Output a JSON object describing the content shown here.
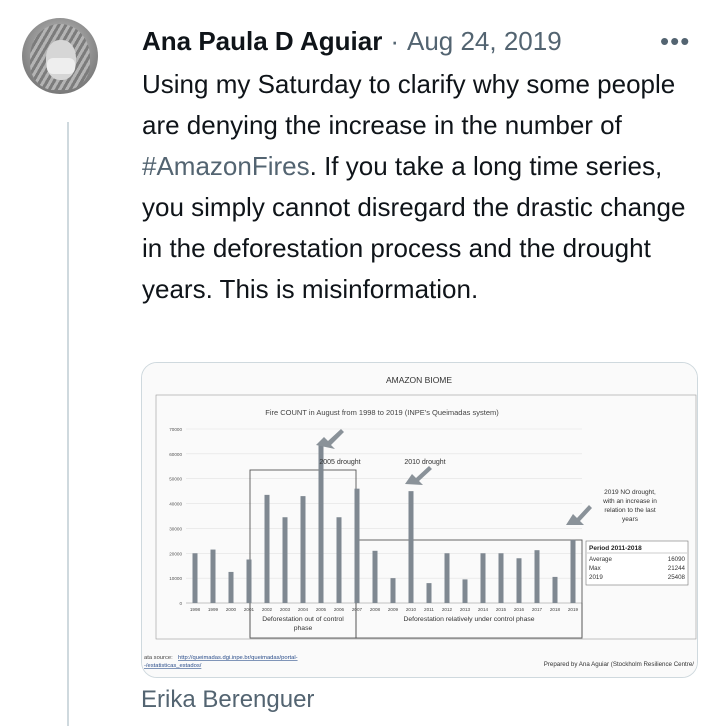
{
  "tweet": {
    "author_name": "Ana Paula D Aguiar",
    "separator": "·",
    "date": "Aug 24, 2019",
    "more_icon": "more-horizontal-icon",
    "text_before": "Using my Saturday to clarify why some people are denying the increase in the number of ",
    "hashtag": "#AmazonFires",
    "text_after": ". If you take a long time series, you simply cannot disregard the drastic change in the deforestation process and the drought years. This is misinformation."
  },
  "media": {
    "header": "AMAZON BIOME",
    "source_label": "ata source:",
    "source_url_1": "http://queimadas.dgi.inpe.br/queimadas/portal-",
    "source_url_2": "-/estatisticas_estados/",
    "prepared_by": "Prepared by Ana Aguiar (Stockholm Resilience Centre/",
    "phase1_label_1": "Deforestation out of control",
    "phase1_label_2": "phase",
    "phase2_label": "Deforestation relatively under control phase",
    "annotations": {
      "drought2005": "2005 drought",
      "drought2010": "2010 drought",
      "no_drought_lines": [
        "2019 NO drought,",
        "with an increase in",
        "relation to the last",
        "years"
      ]
    },
    "stats_table": {
      "title": "Period 2011-2018",
      "rows": [
        {
          "label": "Average",
          "value": "16090"
        },
        {
          "label": "Max",
          "value": "21244"
        },
        {
          "label": "2019",
          "value": "25408"
        }
      ]
    }
  },
  "chart_data": {
    "type": "bar",
    "title": "Fire COUNT in August from 1998 to 2019 (INPE's Queimadas system)",
    "categories": [
      "1998",
      "1999",
      "2000",
      "2001",
      "2002",
      "2003",
      "2004",
      "2005",
      "2006",
      "2007",
      "2008",
      "2009",
      "2010",
      "2011",
      "2012",
      "2013",
      "2014",
      "2015",
      "2016",
      "2017",
      "2018",
      "2019"
    ],
    "values": [
      20000,
      21500,
      12500,
      17500,
      43500,
      34500,
      43000,
      63500,
      34500,
      46000,
      21000,
      10000,
      45000,
      8000,
      20000,
      9500,
      20000,
      20000,
      18000,
      21244,
      10500,
      25408
    ],
    "ylim": [
      0,
      70000
    ],
    "yticks": [
      "0",
      "10000",
      "20000",
      "30000",
      "40000",
      "50000",
      "60000",
      "70000"
    ],
    "bar_color": "#7f8891",
    "grid": true,
    "legend": "none"
  },
  "footer": {
    "reply_author": "Erika Berenguer"
  },
  "colors": {
    "text": "#0f1419",
    "secondary": "#536471",
    "border": "#cfd9de"
  }
}
